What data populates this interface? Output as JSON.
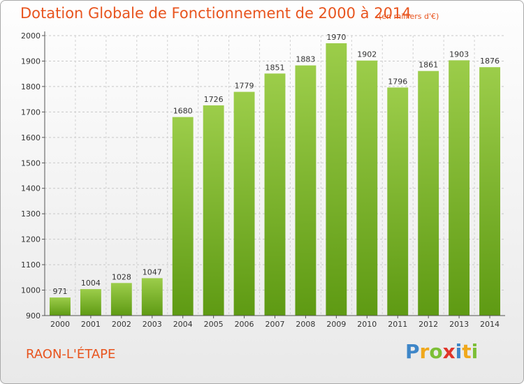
{
  "chart_data": {
    "type": "bar",
    "title": "Dotation Globale de Fonctionnement de 2000 à 2014",
    "subtitle": "(en milliers d'€)",
    "xlabel": "",
    "ylabel": "",
    "categories": [
      "2000",
      "2001",
      "2002",
      "2003",
      "2004",
      "2005",
      "2006",
      "2007",
      "2008",
      "2009",
      "2010",
      "2011",
      "2012",
      "2013",
      "2014"
    ],
    "values": [
      971,
      1004,
      1028,
      1047,
      1680,
      1726,
      1779,
      1851,
      1883,
      1970,
      1902,
      1796,
      1861,
      1903,
      1876
    ],
    "ylim": [
      900,
      2000
    ],
    "yticks": [
      900,
      1000,
      1100,
      1200,
      1300,
      1400,
      1500,
      1600,
      1700,
      1800,
      1900,
      2000
    ],
    "grid": true,
    "legend": "none",
    "bar_color_top": "#9ccd4a",
    "bar_color_bottom": "#5e9a13"
  },
  "footer": {
    "town": "RAON-L'ÉTAPE",
    "brand": "Proxiti"
  }
}
